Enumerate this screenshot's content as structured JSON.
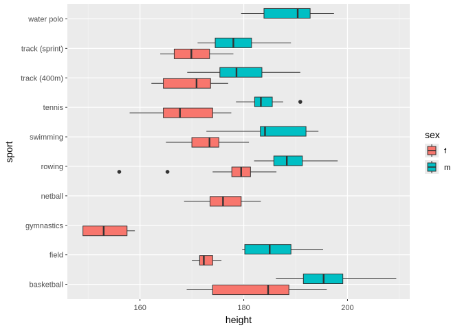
{
  "chart_data": {
    "type": "boxplot",
    "orientation": "horizontal",
    "xlabel": "height",
    "ylabel": "sport",
    "xlim": [
      146,
      212
    ],
    "x_ticks": [
      160,
      180,
      200
    ],
    "categories": [
      "basketball",
      "field",
      "gymnastics",
      "netball",
      "rowing",
      "swimming",
      "tennis",
      "track (400m)",
      "track (sprint)",
      "water polo"
    ],
    "grid": true,
    "legend": {
      "title": "sex",
      "position": "right",
      "entries": [
        "f",
        "m"
      ]
    },
    "colors": {
      "f": "#F8766D",
      "m": "#00BFC4",
      "panel": "#EBEBEB",
      "grid_major": "#FFFFFF",
      "grid_minor": "#F5F5F5"
    },
    "series": [
      {
        "name": "f",
        "boxes": [
          {
            "sport": "basketball",
            "whisker_low": 169,
            "q1": 174,
            "median": 184.7,
            "q3": 188.7,
            "whisker_high": 196,
            "outliers": []
          },
          {
            "sport": "field",
            "whisker_low": 170,
            "q1": 171.5,
            "median": 172.3,
            "q3": 174,
            "whisker_high": 175.7,
            "outliers": []
          },
          {
            "sport": "gymnastics",
            "whisker_low": 149,
            "q1": 149,
            "median": 153,
            "q3": 157.5,
            "whisker_high": 159,
            "outliers": []
          },
          {
            "sport": "netball",
            "whisker_low": 168.5,
            "q1": 173.5,
            "median": 176,
            "q3": 179.5,
            "whisker_high": 183.3,
            "outliers": []
          },
          {
            "sport": "rowing",
            "whisker_low": 174,
            "q1": 177.7,
            "median": 179.5,
            "q3": 181.3,
            "whisker_high": 186.3,
            "outliers": [
              156,
              165.3
            ]
          },
          {
            "sport": "swimming",
            "whisker_low": 165,
            "q1": 170,
            "median": 173.4,
            "q3": 175.2,
            "whisker_high": 181,
            "outliers": []
          },
          {
            "sport": "tennis",
            "whisker_low": 158,
            "q1": 164.5,
            "median": 167.7,
            "q3": 174,
            "whisker_high": 177.6,
            "outliers": []
          },
          {
            "sport": "track (400m)",
            "whisker_low": 162.2,
            "q1": 164.5,
            "median": 170.9,
            "q3": 173.6,
            "whisker_high": 177,
            "outliers": []
          },
          {
            "sport": "track (sprint)",
            "whisker_low": 163.9,
            "q1": 166.6,
            "median": 169.9,
            "q3": 173.4,
            "whisker_high": 178,
            "outliers": []
          }
        ]
      },
      {
        "name": "m",
        "boxes": [
          {
            "sport": "basketball",
            "whisker_low": 186.2,
            "q1": 191.5,
            "median": 195.4,
            "q3": 199.1,
            "whisker_high": 209.4,
            "outliers": []
          },
          {
            "sport": "field",
            "whisker_low": 179.7,
            "q1": 180.2,
            "median": 185,
            "q3": 189.1,
            "whisker_high": 195.3,
            "outliers": []
          },
          {
            "sport": "rowing",
            "whisker_low": 182,
            "q1": 185.8,
            "median": 188.3,
            "q3": 191.3,
            "whisker_high": 198.1,
            "outliers": []
          },
          {
            "sport": "swimming",
            "whisker_low": 172.8,
            "q1": 183.2,
            "median": 184.1,
            "q3": 192,
            "whisker_high": 194.4,
            "outliers": []
          },
          {
            "sport": "tennis",
            "whisker_low": 178.5,
            "q1": 182.1,
            "median": 183.3,
            "q3": 185.5,
            "whisker_high": 187.6,
            "outliers": [
              190.9
            ]
          },
          {
            "sport": "track (400m)",
            "whisker_low": 169.1,
            "q1": 175.4,
            "median": 178.6,
            "q3": 183.5,
            "whisker_high": 190.9,
            "outliers": []
          },
          {
            "sport": "track (sprint)",
            "whisker_low": 171.1,
            "q1": 174.5,
            "median": 178,
            "q3": 181.5,
            "whisker_high": 189.1,
            "outliers": []
          },
          {
            "sport": "water polo",
            "whisker_low": 179.5,
            "q1": 183.9,
            "median": 190.4,
            "q3": 192.8,
            "whisker_high": 197.4,
            "outliers": []
          }
        ]
      }
    ]
  }
}
